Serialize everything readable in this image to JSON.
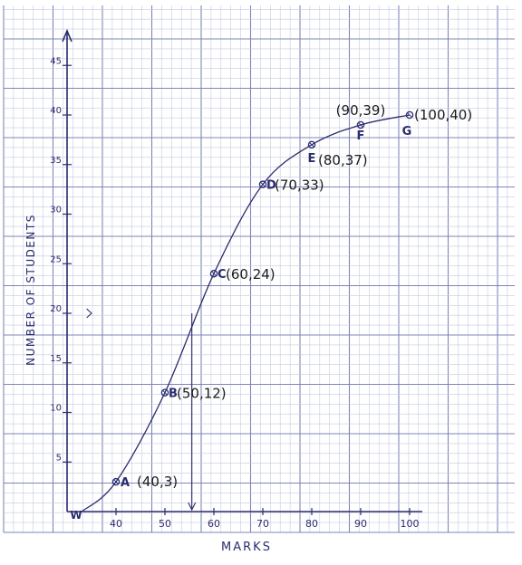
{
  "chart_data": {
    "type": "line",
    "xlabel": "MARKS",
    "ylabel": "NUMBER OF STUDENTS",
    "xlim": [
      30,
      108
    ],
    "ylim": [
      0,
      48
    ],
    "x_ticks": [
      "40",
      "50",
      "60",
      "70",
      "80",
      "90",
      "100"
    ],
    "y_ticks": [
      "5",
      "10",
      "15",
      "20",
      "25",
      "30",
      "35",
      "40",
      "45"
    ],
    "grid": true,
    "axis_break_mark": "W",
    "series": [
      {
        "points": [
          {
            "x": 40,
            "y": 3,
            "letter": "A",
            "text": "(40,3)"
          },
          {
            "x": 50,
            "y": 12,
            "letter": "B",
            "text": "(50,12)"
          },
          {
            "x": 60,
            "y": 24,
            "letter": "C",
            "text": "(60,24)"
          },
          {
            "x": 70,
            "y": 33,
            "letter": "D",
            "text": "(70,33)"
          },
          {
            "x": 80,
            "y": 37,
            "letter": "E",
            "text": "(80,37)"
          },
          {
            "x": 90,
            "y": 39,
            "letter": "F",
            "text": "(90,39)"
          },
          {
            "x": 100,
            "y": 40,
            "letter": "G",
            "text": "(100,40)"
          }
        ]
      }
    ],
    "curve_start": {
      "x": 33,
      "y": 0
    },
    "median_construction": {
      "y": 20,
      "x": 55.5
    },
    "colors": {
      "paper": "#ffffff",
      "grid_minor": "#c6cbe0",
      "grid_major": "#7e87b8",
      "ink": "#2a2c6e",
      "label_text": "#1a1a1a"
    }
  }
}
